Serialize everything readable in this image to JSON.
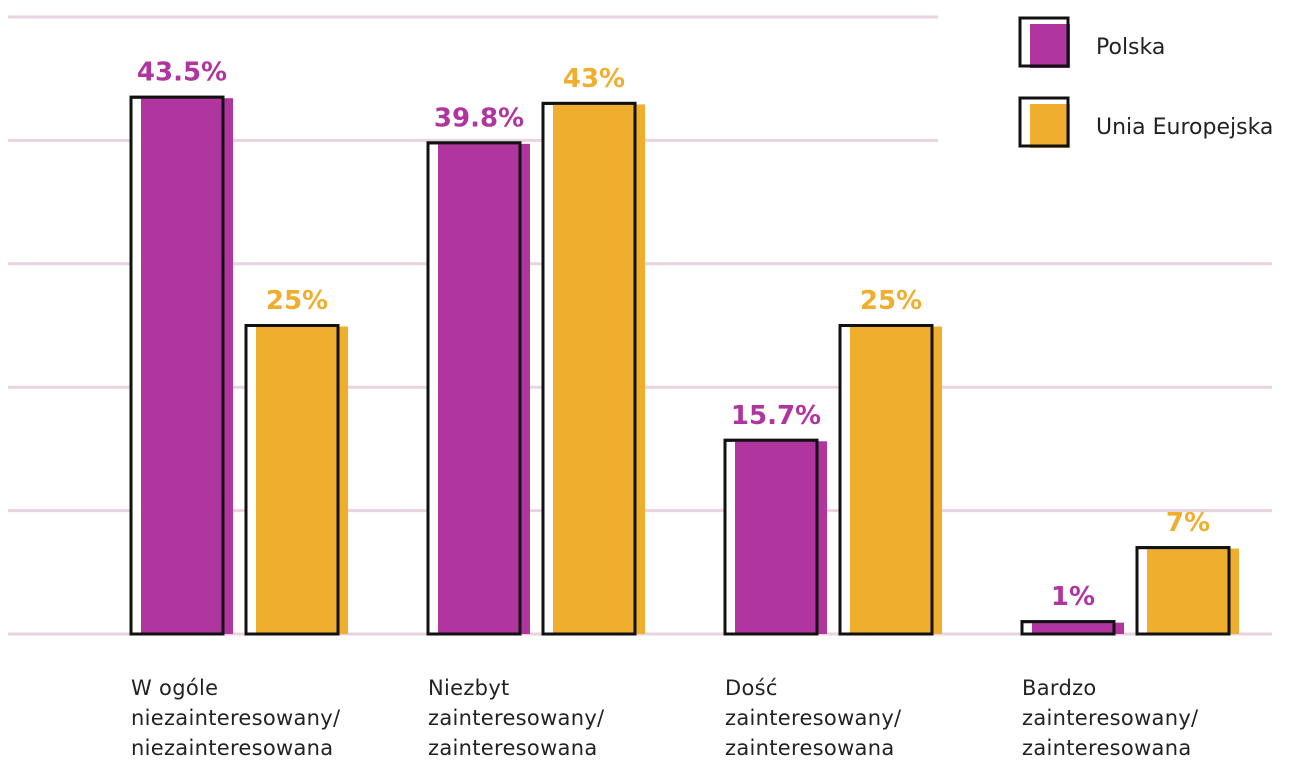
{
  "chart_data": {
    "type": "bar",
    "categories": [
      "W ogóle\nniezainteresowany/\nniezainteresowana",
      "Niezbyt\nzainteresowany/\nzainteresowana",
      "Dość\nzainteresowany/\nzainteresowana",
      "Bardzo\nzainteresowany/\nzainteresowana"
    ],
    "series": [
      {
        "name": "Polska",
        "color": "#b0359e",
        "values": [
          43.5,
          39.8,
          15.7,
          1
        ],
        "value_labels": [
          "43.5%",
          "39.8%",
          "15.7%",
          "1%"
        ]
      },
      {
        "name": "Unia Europejska",
        "color": "#efae2e",
        "values": [
          25,
          43,
          25,
          7
        ],
        "value_labels": [
          "25%",
          "43%",
          "25%",
          "7%"
        ]
      }
    ],
    "ylim": [
      0,
      50
    ],
    "yticks": [
      0,
      10,
      20,
      30,
      40,
      50
    ],
    "grid": true,
    "legend": "upper right"
  }
}
